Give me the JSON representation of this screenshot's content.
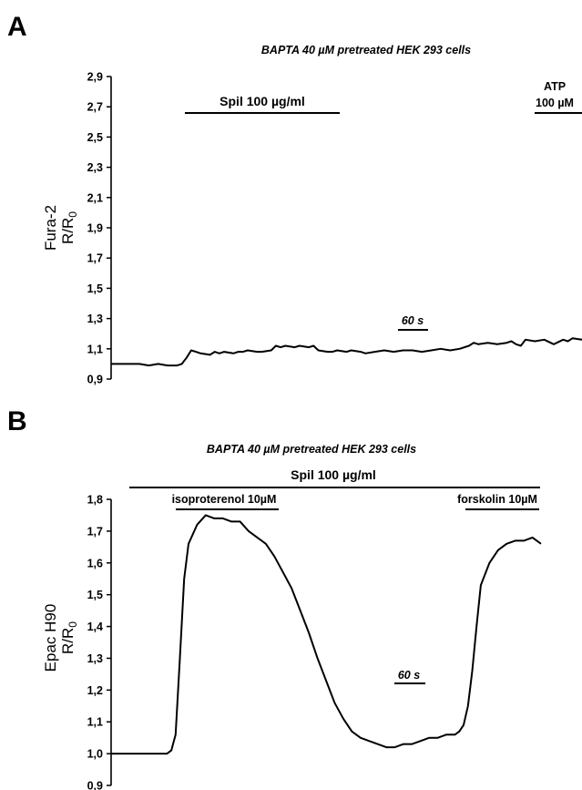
{
  "chart_data": [
    {
      "panel": "A",
      "type": "line",
      "title": "BAPTA 40 µM pretreated HEK 293 cells",
      "ylabel": "Fura-2",
      "ylabel_sub": "R/R",
      "ylabel_sub_index": "0",
      "ylim": [
        0.9,
        2.9
      ],
      "yticks": [
        "2,9",
        "2,7",
        "2,5",
        "2,3",
        "2,1",
        "1,9",
        "1,7",
        "1,5",
        "1,3",
        "1,1",
        "0,9"
      ],
      "ytick_values": [
        2.9,
        2.7,
        2.5,
        2.3,
        2.1,
        1.9,
        1.7,
        1.5,
        1.3,
        1.1,
        0.9
      ],
      "xlim": [
        0,
        100
      ],
      "series": [
        {
          "x": [
            0,
            6,
            8,
            10,
            12,
            14,
            15,
            16,
            17,
            18,
            19,
            21,
            22,
            23,
            24,
            26,
            27,
            28,
            29,
            31,
            32,
            34,
            35,
            36,
            37,
            39,
            40,
            42,
            43,
            44,
            46,
            47,
            48,
            50,
            51,
            53,
            54,
            56,
            58,
            60,
            62,
            64,
            66,
            68,
            70,
            72,
            74,
            76,
            77,
            78,
            80,
            82,
            84,
            85,
            86,
            87,
            88,
            90,
            92,
            94,
            96,
            97,
            98,
            100
          ],
          "y": [
            1.0,
            1.0,
            0.99,
            1.0,
            0.99,
            0.99,
            1.0,
            1.04,
            1.09,
            1.08,
            1.07,
            1.06,
            1.08,
            1.07,
            1.08,
            1.07,
            1.08,
            1.08,
            1.09,
            1.08,
            1.08,
            1.09,
            1.12,
            1.11,
            1.12,
            1.11,
            1.12,
            1.11,
            1.12,
            1.09,
            1.08,
            1.08,
            1.09,
            1.08,
            1.09,
            1.08,
            1.07,
            1.08,
            1.09,
            1.08,
            1.09,
            1.09,
            1.08,
            1.09,
            1.1,
            1.09,
            1.1,
            1.12,
            1.14,
            1.13,
            1.14,
            1.13,
            1.14,
            1.15,
            1.13,
            1.12,
            1.16,
            1.15,
            1.16,
            1.13,
            1.16,
            1.15,
            1.17,
            1.16
          ]
        }
      ],
      "annotations": {
        "treatment1": "Spil 100 µg/ml",
        "treatment2_line1": "ATP",
        "treatment2_line2": "100 µM",
        "scale": "60 s"
      }
    },
    {
      "panel": "B",
      "type": "line",
      "title": "BAPTA 40 µM pretreated HEK 293 cells",
      "ylabel": "Epac H90",
      "ylabel_sub": "R/R",
      "ylabel_sub_index": "0",
      "ylim": [
        0.9,
        1.8
      ],
      "yticks": [
        "1,8",
        "1,7",
        "1,6",
        "1,5",
        "1,4",
        "1,3",
        "1,2",
        "1,1",
        "1,0",
        "0,9"
      ],
      "ytick_values": [
        1.8,
        1.7,
        1.6,
        1.5,
        1.4,
        1.3,
        1.2,
        1.1,
        1.0,
        0.9
      ],
      "xlim": [
        0,
        100
      ],
      "series": [
        {
          "x": [
            0,
            3,
            6,
            9,
            11,
            12,
            13,
            14,
            15,
            16,
            17,
            18,
            20,
            22,
            24,
            26,
            28,
            30,
            32,
            34,
            36,
            38,
            40,
            42,
            44,
            46,
            48,
            50,
            52,
            54,
            56,
            58,
            60,
            62,
            64,
            66,
            68,
            70,
            72,
            74,
            76,
            78,
            80,
            81,
            82,
            83,
            84,
            85,
            86,
            88,
            90,
            92,
            94,
            96,
            98,
            100
          ],
          "y": [
            1.0,
            1.0,
            1.0,
            1.0,
            1.0,
            1.0,
            1.0,
            1.01,
            1.06,
            1.3,
            1.55,
            1.66,
            1.72,
            1.75,
            1.74,
            1.74,
            1.73,
            1.73,
            1.7,
            1.68,
            1.66,
            1.62,
            1.57,
            1.52,
            1.45,
            1.38,
            1.3,
            1.23,
            1.16,
            1.11,
            1.07,
            1.05,
            1.04,
            1.03,
            1.02,
            1.02,
            1.03,
            1.03,
            1.04,
            1.05,
            1.05,
            1.06,
            1.06,
            1.07,
            1.09,
            1.15,
            1.26,
            1.4,
            1.53,
            1.6,
            1.64,
            1.66,
            1.67,
            1.67,
            1.68,
            1.66
          ]
        }
      ],
      "annotations": {
        "treatment_main": "Spil 100 µg/ml",
        "treatment1": "isoproterenol 10µM",
        "treatment2": "forskolin 10µM",
        "scale": "60 s"
      }
    }
  ],
  "panels": {
    "a": "A",
    "b": "B"
  }
}
